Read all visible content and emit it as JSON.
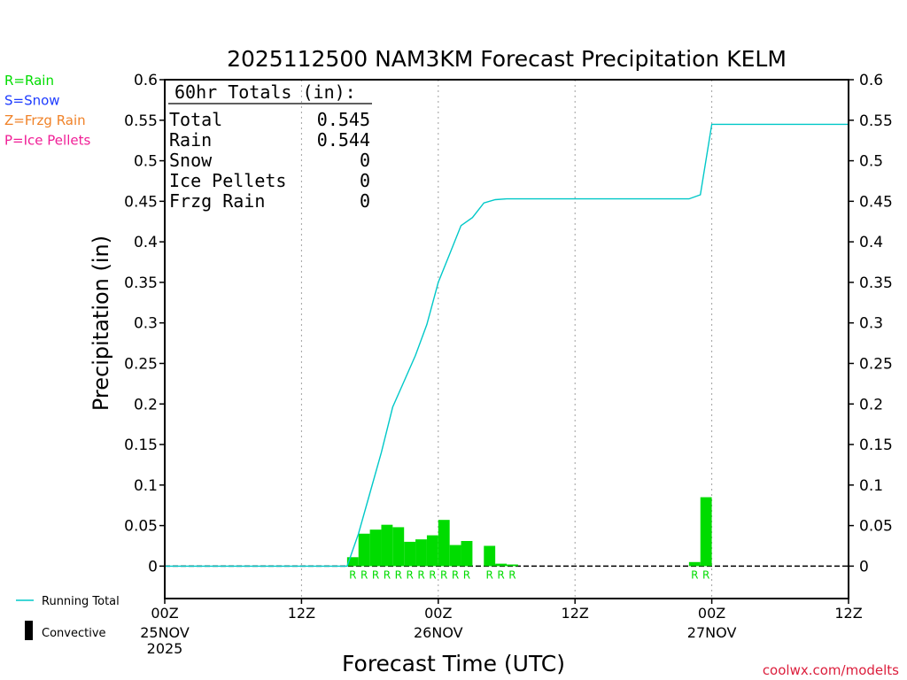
{
  "chart_data": {
    "type": "bar",
    "title": "2025112500 NAM3KM Forecast Precipitation KELM",
    "xlabel": "Forecast Time (UTC)",
    "ylabel": "Precipitation (in)",
    "ylim": [
      -0.04,
      0.6
    ],
    "yticks": [
      0,
      0.05,
      0.1,
      0.15,
      0.2,
      0.25,
      0.3,
      0.35,
      0.4,
      0.45,
      0.5,
      0.55,
      0.6
    ],
    "ytick_labels": [
      "0",
      "0.05",
      "0.1",
      "0.15",
      "0.2",
      "0.25",
      "0.3",
      "0.35",
      "0.4",
      "0.45",
      "0.5",
      "0.55",
      "0.6"
    ],
    "xlim_hours": [
      0,
      60
    ],
    "xticks": [
      {
        "hour": 0,
        "label": "00Z",
        "sub1": "25NOV",
        "sub2": "2025"
      },
      {
        "hour": 12,
        "label": "12Z",
        "sub1": "",
        "sub2": ""
      },
      {
        "hour": 24,
        "label": "00Z",
        "sub1": "26NOV",
        "sub2": ""
      },
      {
        "hour": 36,
        "label": "12Z",
        "sub1": "",
        "sub2": ""
      },
      {
        "hour": 48,
        "label": "00Z",
        "sub1": "27NOV",
        "sub2": ""
      },
      {
        "hour": 60,
        "label": "12Z",
        "sub1": "",
        "sub2": ""
      }
    ],
    "grid_x_hours": [
      12,
      24,
      36,
      48
    ],
    "bars": [
      {
        "hour": 16.5,
        "value": 0.011,
        "type": "R"
      },
      {
        "hour": 17.5,
        "value": 0.04,
        "type": "R"
      },
      {
        "hour": 18.5,
        "value": 0.045,
        "type": "R"
      },
      {
        "hour": 19.5,
        "value": 0.051,
        "type": "R"
      },
      {
        "hour": 20.5,
        "value": 0.048,
        "type": "R"
      },
      {
        "hour": 21.5,
        "value": 0.03,
        "type": "R"
      },
      {
        "hour": 22.5,
        "value": 0.033,
        "type": "R"
      },
      {
        "hour": 23.5,
        "value": 0.038,
        "type": "R"
      },
      {
        "hour": 24.5,
        "value": 0.057,
        "type": "R"
      },
      {
        "hour": 25.5,
        "value": 0.026,
        "type": "R"
      },
      {
        "hour": 26.5,
        "value": 0.031,
        "type": "R"
      },
      {
        "hour": 28.5,
        "value": 0.025,
        "type": "R"
      },
      {
        "hour": 29.5,
        "value": 0.003,
        "type": "R"
      },
      {
        "hour": 30.5,
        "value": 0.002,
        "type": "R"
      },
      {
        "hour": 46.5,
        "value": 0.005,
        "type": "R"
      },
      {
        "hour": 47.5,
        "value": 0.085,
        "type": "R"
      }
    ],
    "running_total": {
      "name": "Running Total",
      "x": [
        0,
        16,
        17,
        18,
        19,
        20,
        21,
        22,
        23,
        24,
        25,
        26,
        27,
        28,
        29,
        30,
        31,
        32,
        33,
        34,
        35,
        36,
        37,
        38,
        39,
        40,
        41,
        42,
        43,
        44,
        45,
        46,
        47,
        48,
        49,
        50,
        51,
        52,
        53,
        54,
        55,
        56,
        57,
        58,
        59,
        60
      ],
      "y": [
        0,
        0,
        0.04,
        0.09,
        0.14,
        0.196,
        0.228,
        0.26,
        0.298,
        0.35,
        0.385,
        0.42,
        0.43,
        0.448,
        0.452,
        0.453,
        0.453,
        0.453,
        0.453,
        0.453,
        0.453,
        0.453,
        0.453,
        0.453,
        0.453,
        0.453,
        0.453,
        0.453,
        0.453,
        0.453,
        0.453,
        0.453,
        0.458,
        0.545,
        0.545,
        0.545,
        0.545,
        0.545,
        0.545,
        0.545,
        0.545,
        0.545,
        0.545,
        0.545,
        0.545,
        0.545
      ]
    },
    "totals": {
      "header": "60hr Totals (in):",
      "rows": [
        {
          "label": "Total",
          "value": "0.545"
        },
        {
          "label": "Rain",
          "value": "0.544"
        },
        {
          "label": "Snow",
          "value": "0"
        },
        {
          "label": "Ice Pellets",
          "value": "0"
        },
        {
          "label": "Frzg Rain",
          "value": "0"
        }
      ]
    },
    "type_legend": [
      {
        "text": "R=Rain",
        "color": "#00dc00"
      },
      {
        "text": "S=Snow",
        "color": "#1e3cff"
      },
      {
        "text": "Z=Frzg Rain",
        "color": "#f08228"
      },
      {
        "text": "P=Ice Pellets",
        "color": "#f01e96"
      }
    ],
    "series_legend": [
      {
        "text": "Running Total",
        "symbol": "line",
        "color": "#00c8c8"
      },
      {
        "text": "Convective",
        "symbol": "bar",
        "color": "#000000"
      }
    ],
    "colors": {
      "rain_bar": "#00dc00",
      "running_total": "#00c8c8",
      "axis": "#000000",
      "grid": "#a0a0a0"
    },
    "credit": "coolwx.com/modelts"
  }
}
